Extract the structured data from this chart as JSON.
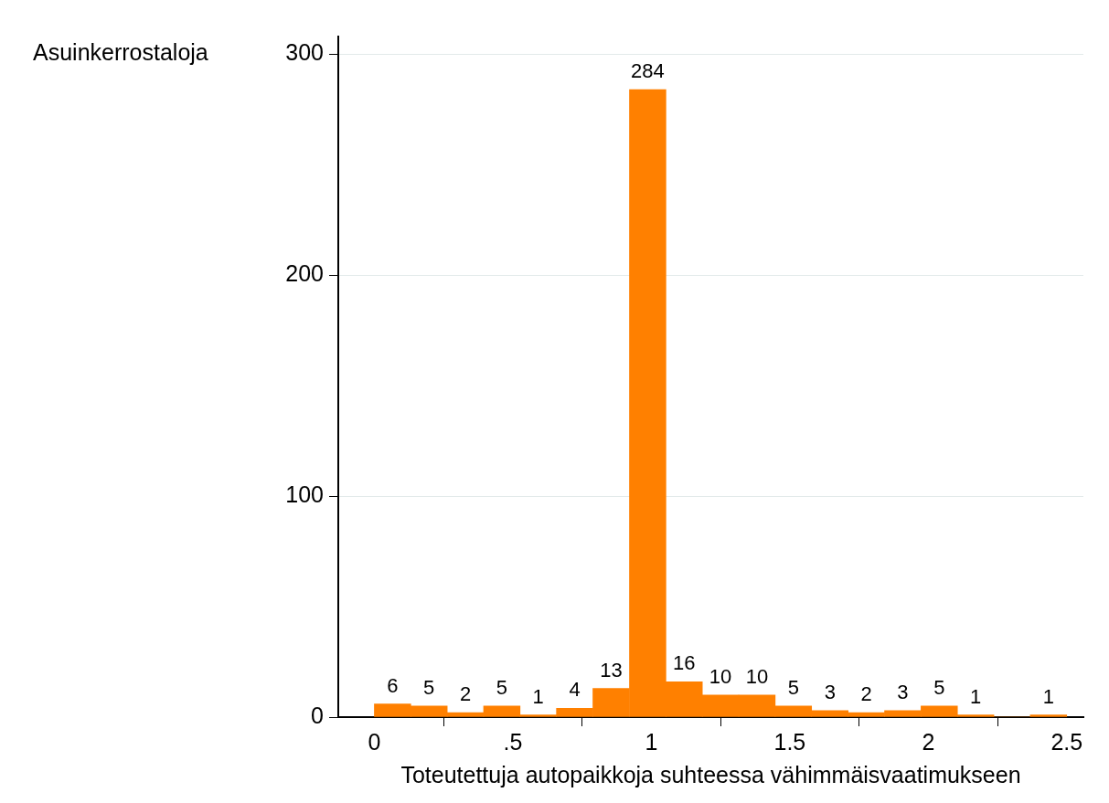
{
  "chart_data": {
    "type": "histogram",
    "xlabel": "Toteutettuja autopaikkoja suhteessa vähimmäisvaatimukseen",
    "ylabel": "Asuinkerrostaloja",
    "bins": [
      0,
      0.132,
      0.263,
      0.395,
      0.526,
      0.658,
      0.789,
      0.921,
      1.053,
      1.184,
      1.316,
      1.447,
      1.579,
      1.711,
      1.842,
      1.974,
      2.105,
      2.237,
      2.368,
      2.5
    ],
    "values": [
      6,
      5,
      2,
      5,
      1,
      4,
      13,
      284,
      16,
      10,
      10,
      5,
      3,
      2,
      3,
      5,
      1,
      0,
      1
    ],
    "value_labels": [
      "6",
      "5",
      "2",
      "5",
      "1",
      "4",
      "13",
      "284",
      "16",
      "10",
      "10",
      "5",
      "3",
      "2",
      "3",
      "5",
      "1",
      null,
      "1"
    ],
    "color": "#ff8000",
    "xlim": [
      -0.13,
      2.56
    ],
    "xticks": [
      0,
      {
        "value": 0.5,
        "label": ".5"
      },
      1,
      1.5,
      2,
      2.5
    ],
    "ylim": [
      0,
      308
    ],
    "yticks": [
      0,
      100,
      200,
      300
    ],
    "grid": "y",
    "legend": false
  }
}
